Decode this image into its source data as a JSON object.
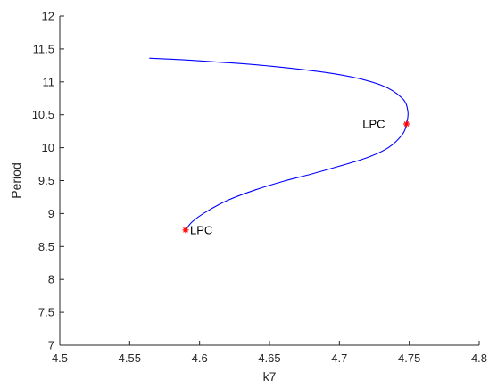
{
  "chart_data": {
    "type": "line",
    "title": "",
    "xlabel": "k7",
    "ylabel": "Period",
    "xlim": [
      4.5,
      4.8
    ],
    "ylim": [
      7,
      12
    ],
    "xticks": [
      4.5,
      4.55,
      4.6,
      4.65,
      4.7,
      4.75,
      4.8
    ],
    "xtick_labels": [
      "4.5",
      "4.55",
      "4.6",
      "4.65",
      "4.7",
      "4.75",
      "4.8"
    ],
    "yticks": [
      7,
      7.5,
      8,
      8.5,
      9,
      9.5,
      10,
      10.5,
      11,
      11.5,
      12
    ],
    "ytick_labels": [
      "7",
      "7.5",
      "8",
      "8.5",
      "9",
      "9.5",
      "10",
      "10.5",
      "11",
      "11.5",
      "12"
    ],
    "grid": false,
    "series": [
      {
        "color": "#0000ff",
        "points": [
          [
            4.564,
            11.36
          ],
          [
            4.6,
            11.32
          ],
          [
            4.65,
            11.24
          ],
          [
            4.7,
            11.11
          ],
          [
            4.73,
            10.95
          ],
          [
            4.745,
            10.75
          ],
          [
            4.749,
            10.55
          ],
          [
            4.748,
            10.36
          ],
          [
            4.745,
            10.2
          ],
          [
            4.735,
            10.0
          ],
          [
            4.72,
            9.85
          ],
          [
            4.7,
            9.72
          ],
          [
            4.68,
            9.6
          ],
          [
            4.66,
            9.49
          ],
          [
            4.64,
            9.36
          ],
          [
            4.62,
            9.2
          ],
          [
            4.605,
            9.03
          ],
          [
            4.595,
            8.88
          ],
          [
            4.59,
            8.75
          ]
        ]
      }
    ],
    "annotations": [
      {
        "label": "LPC",
        "x": 4.748,
        "y": 10.36,
        "marker": "*",
        "color": "#ff0000",
        "label_side": "left"
      },
      {
        "label": "LPC",
        "x": 4.59,
        "y": 8.75,
        "marker": "*",
        "color": "#ff0000",
        "label_side": "right"
      }
    ]
  }
}
